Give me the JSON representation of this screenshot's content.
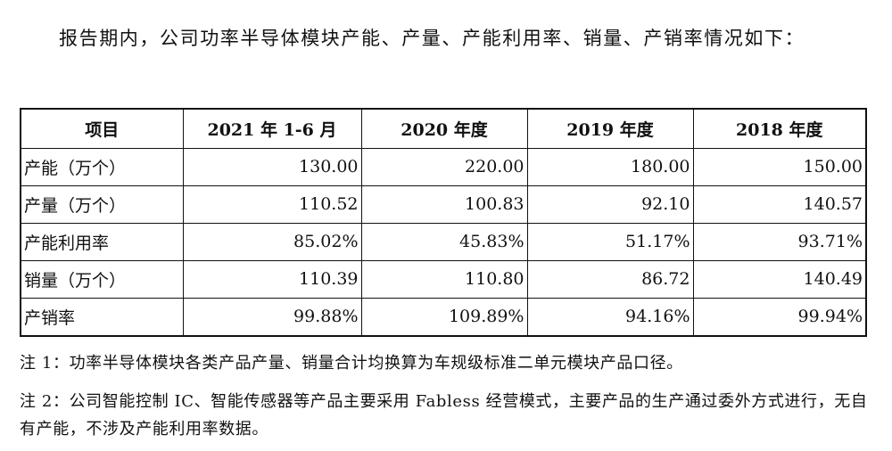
{
  "intro": "报告期内，公司功率半导体模块产能、产量、产能利用率、销量、产销率情况如下：",
  "table": {
    "headers": [
      "项目",
      "2021 年 1-6 月",
      "2020 年度",
      "2019 年度",
      "2018 年度"
    ],
    "rows": [
      {
        "label": "产能（万个）",
        "values": [
          "130.00",
          "220.00",
          "180.00",
          "150.00"
        ]
      },
      {
        "label": "产量（万个）",
        "values": [
          "110.52",
          "100.83",
          "92.10",
          "140.57"
        ]
      },
      {
        "label": "产能利用率",
        "values": [
          "85.02%",
          "45.83%",
          "51.17%",
          "93.71%"
        ]
      },
      {
        "label": "销量（万个）",
        "values": [
          "110.39",
          "110.80",
          "86.72",
          "140.49"
        ]
      },
      {
        "label": "产销率",
        "values": [
          "99.88%",
          "109.89%",
          "94.16%",
          "99.94%"
        ]
      }
    ]
  },
  "notes": [
    "注 1：功率半导体模块各类产品产量、销量合计均换算为车规级标准二单元模块产品口径。",
    "注 2：公司智能控制 IC、智能传感器等产品主要采用 Fabless 经营模式，主要产品的生产通过委外方式进行，无自有产能，不涉及产能利用率数据。"
  ]
}
